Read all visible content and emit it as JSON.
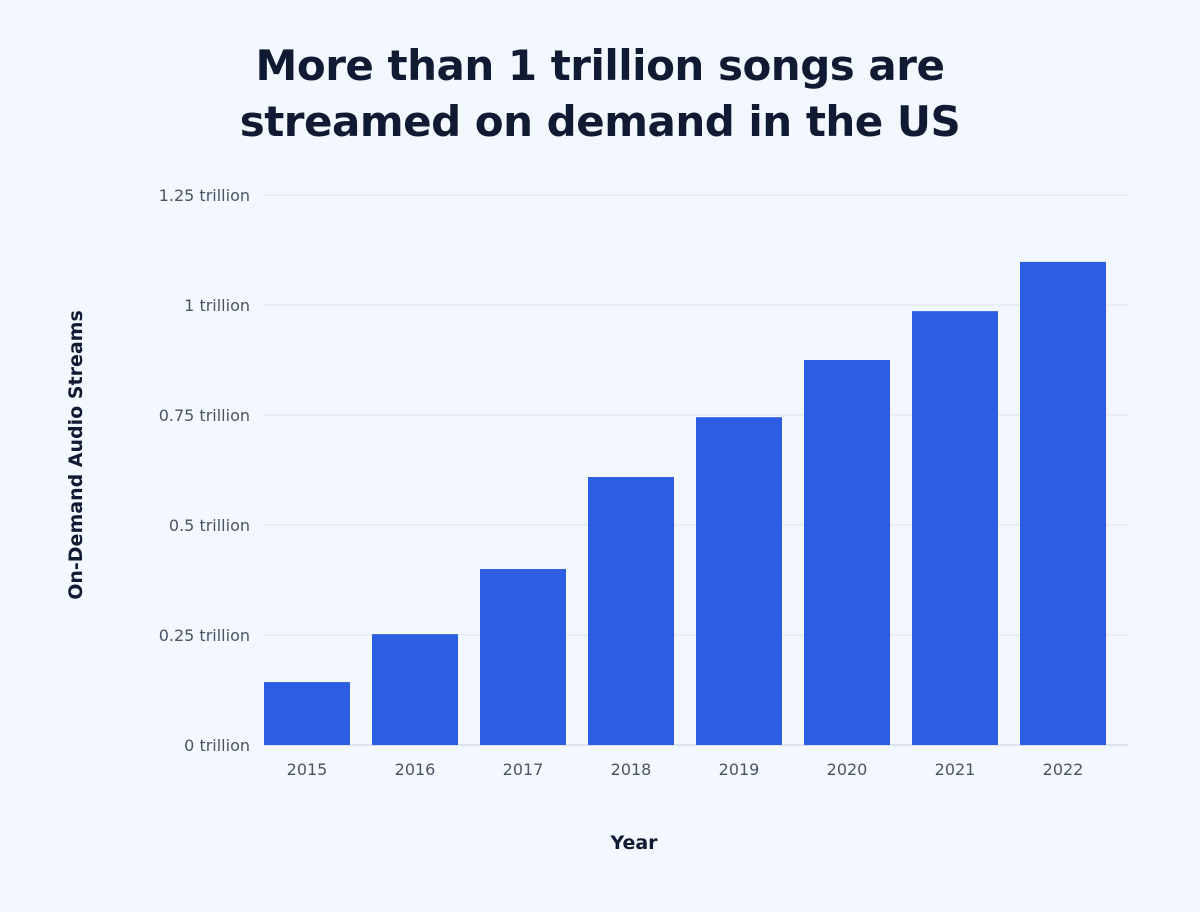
{
  "chart_data": {
    "type": "bar",
    "title": "More than 1 trillion songs are streamed on demand in the US",
    "title_lines": [
      "More than 1 trillion songs are",
      "streamed on demand in the US"
    ],
    "xlabel": "Year",
    "ylabel": "On-Demand Audio Streams",
    "categories": [
      "2015",
      "2016",
      "2017",
      "2018",
      "2019",
      "2020",
      "2021",
      "2022"
    ],
    "values": [
      0.143,
      0.252,
      0.4,
      0.609,
      0.745,
      0.875,
      0.986,
      1.098
    ],
    "unit": "trillion",
    "ylim": [
      0,
      1.25
    ],
    "yticks": [
      0,
      0.25,
      0.5,
      0.75,
      1,
      1.25
    ],
    "ytick_labels": [
      "0 trillion",
      "0.25 trillion",
      "0.5 trillion",
      "0.75 trillion",
      "1 trillion",
      "1.25 trillion"
    ],
    "grid": true,
    "legend": "none",
    "colors": {
      "bar": "#2d5de3",
      "background": "#f3f8fe",
      "grid": "#dde4ee",
      "title": "#111a33"
    }
  }
}
